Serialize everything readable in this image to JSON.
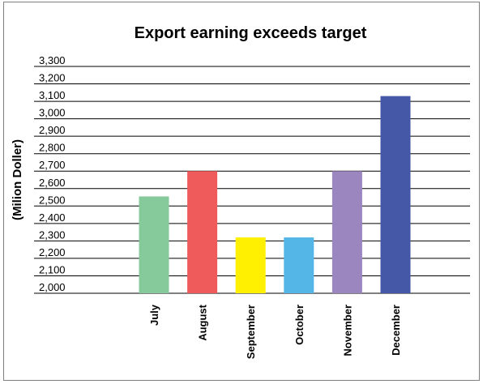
{
  "chart_data": {
    "type": "bar",
    "title": "Export earning exceeds target",
    "xlabel": "",
    "ylabel": "(Milion Doller)",
    "categories": [
      "July",
      "August",
      "September",
      "October",
      "November",
      "December"
    ],
    "values": [
      2555,
      2700,
      2320,
      2320,
      2700,
      3130
    ],
    "colors": [
      "#86c99b",
      "#ef5b5b",
      "#ffef00",
      "#54b6e6",
      "#9c86c0",
      "#4558a7"
    ],
    "yticks": [
      "2,000",
      "2,100",
      "2,200",
      "2,300",
      "2,400",
      "2,500",
      "2,600",
      "2,700",
      "2,800",
      "2,900",
      "3,000",
      "3,100",
      "3,200",
      "3,300"
    ],
    "ylim": [
      2000,
      3300
    ],
    "grid": true,
    "legend": "none"
  }
}
